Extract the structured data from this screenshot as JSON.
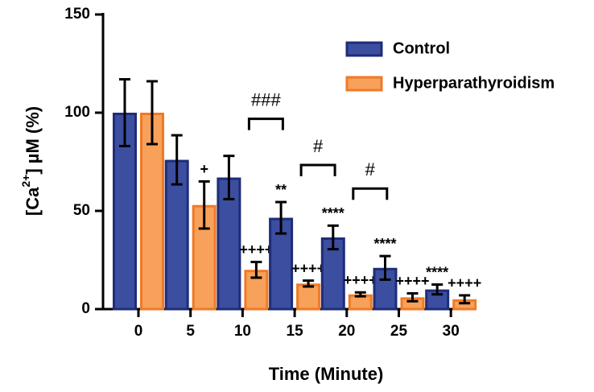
{
  "chart_data": {
    "type": "bar",
    "xlabel": "Time (Minute)",
    "ylabel": {
      "prefix": "[Ca",
      "sup": "2+",
      "suffix": "] µM (%)"
    },
    "categories": [
      "0",
      "5",
      "10",
      "15",
      "20",
      "25",
      "30"
    ],
    "series": [
      {
        "name": "Control",
        "color": "#3c4ea0",
        "edge": "#1f2c78",
        "values": [
          100,
          76,
          67,
          46.5,
          36.5,
          21,
          10
        ],
        "errors": [
          17,
          12.5,
          11,
          8,
          6,
          6,
          2.5
        ],
        "marks": [
          null,
          null,
          null,
          "**",
          "****",
          "****",
          "****"
        ]
      },
      {
        "name": "Hyperparathyroidism",
        "color": "#f7a15a",
        "edge": "#ef7a26",
        "values": [
          100,
          53,
          20,
          13,
          7.5,
          6,
          5
        ],
        "errors": [
          16,
          12,
          4,
          1.5,
          1,
          2,
          2
        ],
        "marks": [
          null,
          "+",
          "++++",
          "++++",
          "++++",
          "++++",
          "++++"
        ]
      }
    ],
    "comparisons": [
      null,
      null,
      "###",
      "#",
      "#",
      null,
      null
    ],
    "ylim": [
      0,
      150
    ],
    "yticks": [
      0,
      50,
      100,
      150
    ]
  }
}
